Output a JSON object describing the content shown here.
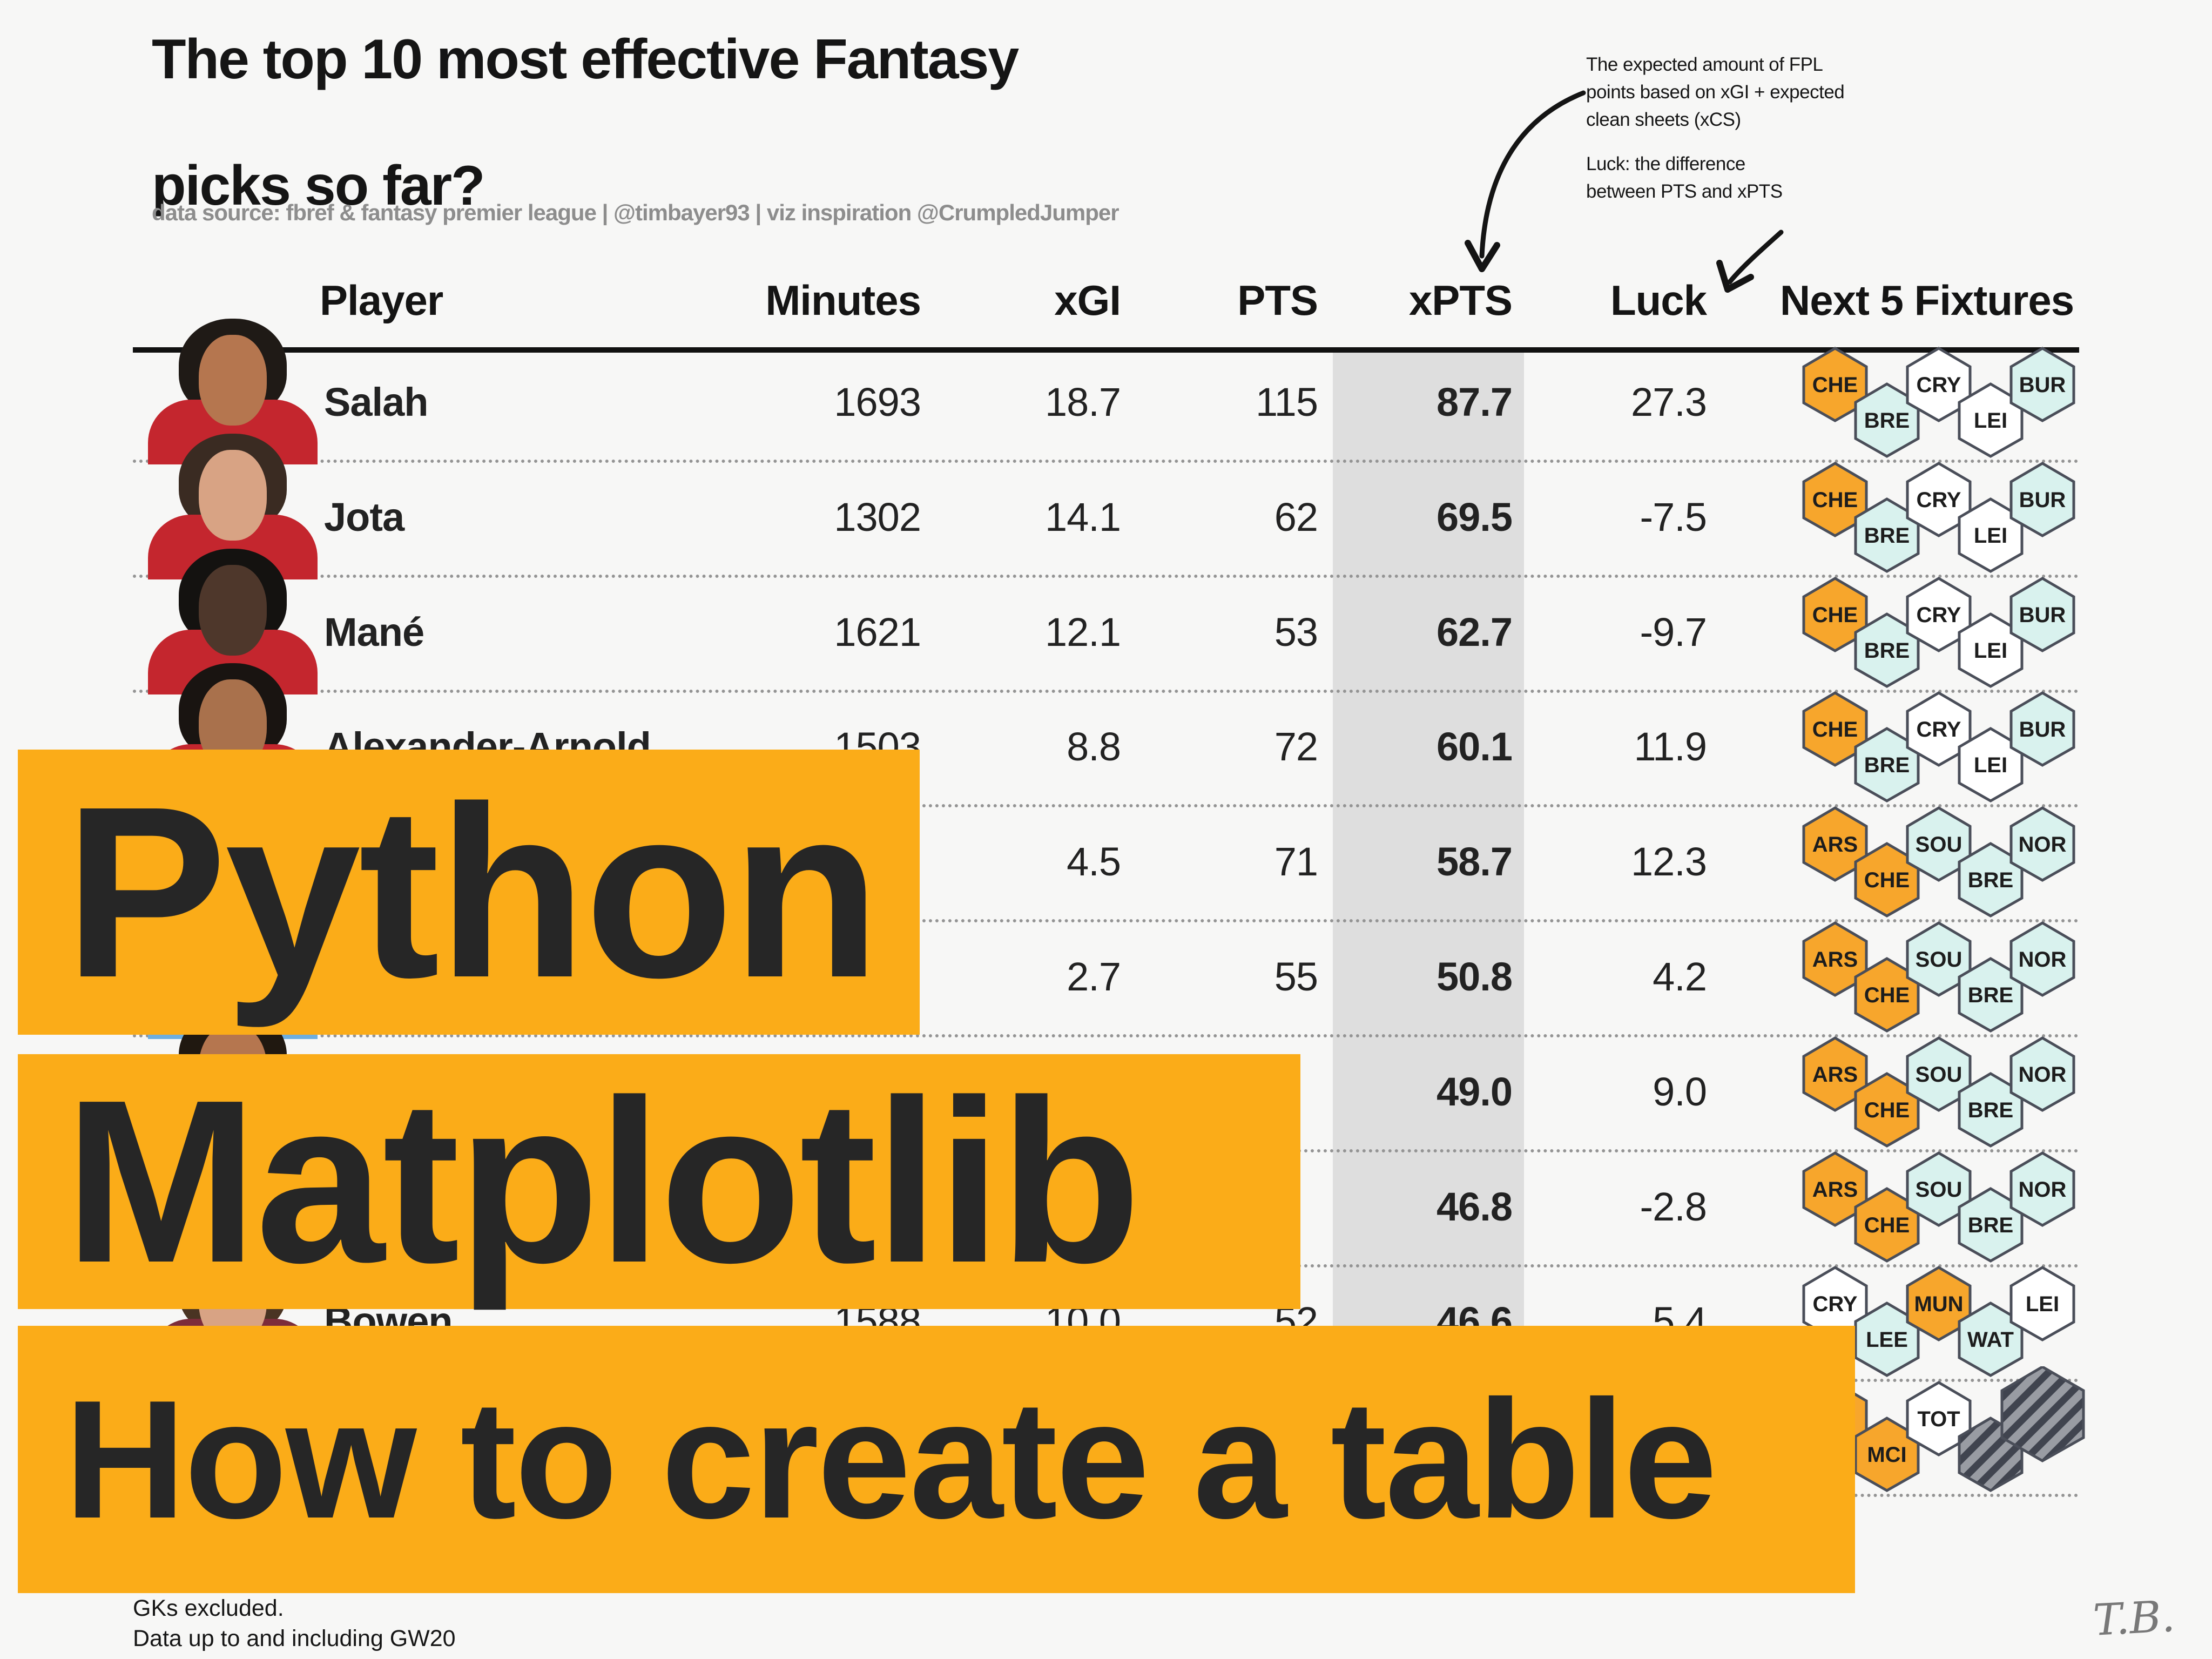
{
  "title": {
    "line1": "The top 10 most effective Fantasy",
    "line2": "picks so far?"
  },
  "subtitle": "data source: fbref & fantasy premier league | @timbayer93 | viz inspiration @CrumpledJumper",
  "annotations": {
    "xpts_note": "The expected amount of FPL\npoints based on xGI + expected\nclean sheets (xCS)",
    "luck_note": "Luck: the difference\nbetween PTS and xPTS"
  },
  "banners": [
    {
      "label": "Python"
    },
    {
      "label": "Matplotlib"
    },
    {
      "label": "How to create a table"
    }
  ],
  "footer": {
    "line1": "GKs excluded.",
    "line2": "Data up to and including GW20"
  },
  "signature": "T.B.",
  "colors": {
    "background": "#F7F7F6",
    "banner_orange": "#FBAC18",
    "highlight_band": "#DEDEDE",
    "hex": {
      "orange": "#F7A62C",
      "teal": "#D9F2EE",
      "white": "#FFFFFF"
    },
    "hex_border": "#4A4E59",
    "hatch_dark": "#40444F",
    "hatch_light": "#999CA3"
  },
  "chart_data": {
    "type": "table",
    "title": "The top 10 most effective Fantasy picks so far?",
    "columns": [
      "Player",
      "Minutes",
      "xGI",
      "PTS",
      "xPTS",
      "Luck",
      "Next 5 Fixtures"
    ],
    "highlight_column": "xPTS",
    "rows": [
      {
        "player": "Salah",
        "minutes": "1693",
        "xgi": "18.7",
        "pts": "115",
        "xpts": "87.7",
        "luck": "27.3",
        "photo": {
          "skin": "#B5764F",
          "hair": "#1F1A16",
          "shirt": "#C4262E",
          "trim": "#FF6A55"
        },
        "fixtures": [
          {
            "code": "CHE",
            "style": "orange"
          },
          {
            "code": "BRE",
            "style": "teal"
          },
          {
            "code": "CRY",
            "style": "white"
          },
          {
            "code": "LEI",
            "style": "white"
          },
          {
            "code": "BUR",
            "style": "teal"
          }
        ]
      },
      {
        "player": "Jota",
        "minutes": "1302",
        "xgi": "14.1",
        "pts": "62",
        "xpts": "69.5",
        "luck": "-7.5",
        "photo": {
          "skin": "#D8A384",
          "hair": "#3A2B22",
          "shirt": "#C4262E",
          "trim": "#FF6A55"
        },
        "fixtures": [
          {
            "code": "CHE",
            "style": "orange"
          },
          {
            "code": "BRE",
            "style": "teal"
          },
          {
            "code": "CRY",
            "style": "white"
          },
          {
            "code": "LEI",
            "style": "white"
          },
          {
            "code": "BUR",
            "style": "teal"
          }
        ]
      },
      {
        "player": "Mané",
        "minutes": "1621",
        "xgi": "12.1",
        "pts": "53",
        "xpts": "62.7",
        "luck": "-9.7",
        "photo": {
          "skin": "#4E372B",
          "hair": "#141210",
          "shirt": "#C4262E",
          "trim": "#FF6A55"
        },
        "fixtures": [
          {
            "code": "CHE",
            "style": "orange"
          },
          {
            "code": "BRE",
            "style": "teal"
          },
          {
            "code": "CRY",
            "style": "white"
          },
          {
            "code": "LEI",
            "style": "white"
          },
          {
            "code": "BUR",
            "style": "teal"
          }
        ]
      },
      {
        "player": "Alexander-Arnold",
        "minutes": "1503",
        "xgi": "8.8",
        "pts": "72",
        "xpts": "60.1",
        "luck": "11.9",
        "photo": {
          "skin": "#A9714C",
          "hair": "#191411",
          "shirt": "#C4262E",
          "trim": "#FF6A55"
        },
        "fixtures": [
          {
            "code": "CHE",
            "style": "orange"
          },
          {
            "code": "BRE",
            "style": "teal"
          },
          {
            "code": "CRY",
            "style": "white"
          },
          {
            "code": "LEI",
            "style": "white"
          },
          {
            "code": "BUR",
            "style": "teal"
          }
        ]
      },
      {
        "player": "",
        "minutes": "",
        "xgi": "4.5",
        "pts": "71",
        "xpts": "58.7",
        "luck": "12.3",
        "photo": null,
        "fixtures": [
          {
            "code": "ARS",
            "style": "orange"
          },
          {
            "code": "CHE",
            "style": "orange"
          },
          {
            "code": "SOU",
            "style": "teal"
          },
          {
            "code": "BRE",
            "style": "teal"
          },
          {
            "code": "NOR",
            "style": "teal"
          }
        ]
      },
      {
        "player": "",
        "minutes": "",
        "xgi": "2.7",
        "pts": "55",
        "xpts": "50.8",
        "luck": "4.2",
        "photo": {
          "skin": "#C89B78",
          "hair": "#2A2018",
          "shirt": "#6FAEDE",
          "trim": "#5E93C8"
        },
        "fixtures": [
          {
            "code": "ARS",
            "style": "orange"
          },
          {
            "code": "CHE",
            "style": "orange"
          },
          {
            "code": "SOU",
            "style": "teal"
          },
          {
            "code": "BRE",
            "style": "teal"
          },
          {
            "code": "NOR",
            "style": "teal"
          }
        ]
      },
      {
        "player": "",
        "minutes": "",
        "xgi": "",
        "pts": "",
        "xpts": "49.0",
        "luck": "9.0",
        "photo": {
          "skin": "#B5764F",
          "hair": "#201810",
          "shirt": "#8C8C8C",
          "trim": "#7A7A7A"
        },
        "fixtures": [
          {
            "code": "ARS",
            "style": "orange"
          },
          {
            "code": "CHE",
            "style": "orange"
          },
          {
            "code": "SOU",
            "style": "teal"
          },
          {
            "code": "BRE",
            "style": "teal"
          },
          {
            "code": "NOR",
            "style": "teal"
          }
        ]
      },
      {
        "player": "",
        "minutes": "",
        "xgi": "",
        "pts": "",
        "xpts": "46.8",
        "luck": "-2.8",
        "photo": null,
        "fixtures": [
          {
            "code": "ARS",
            "style": "orange"
          },
          {
            "code": "CHE",
            "style": "orange"
          },
          {
            "code": "SOU",
            "style": "teal"
          },
          {
            "code": "BRE",
            "style": "teal"
          },
          {
            "code": "NOR",
            "style": "teal"
          }
        ]
      },
      {
        "player": "Bowen",
        "minutes": "1588",
        "xgi": "10.0",
        "pts": "52",
        "xpts": "46.6",
        "luck": "5.4",
        "photo": {
          "skin": "#D8A384",
          "hair": "#4A3423",
          "shirt": "#7C2C3B",
          "trim": "#9BC0E0"
        },
        "fixtures": [
          {
            "code": "CRY",
            "style": "white"
          },
          {
            "code": "LEE",
            "style": "teal"
          },
          {
            "code": "MUN",
            "style": "orange"
          },
          {
            "code": "WAT",
            "style": "teal"
          },
          {
            "code": "LEI",
            "style": "white"
          }
        ]
      },
      {
        "player": "",
        "minutes": "",
        "xgi": "",
        "pts": "",
        "xpts": "",
        "luck": "",
        "photo": null,
        "fixtures": [
          {
            "code": "",
            "style": "orange"
          },
          {
            "code": "MCI",
            "style": "orange"
          },
          {
            "code": "TOT",
            "style": "white"
          },
          {
            "code": "",
            "style": "hatch"
          },
          {
            "code": "",
            "style": "hatch",
            "big": true
          }
        ]
      }
    ]
  }
}
